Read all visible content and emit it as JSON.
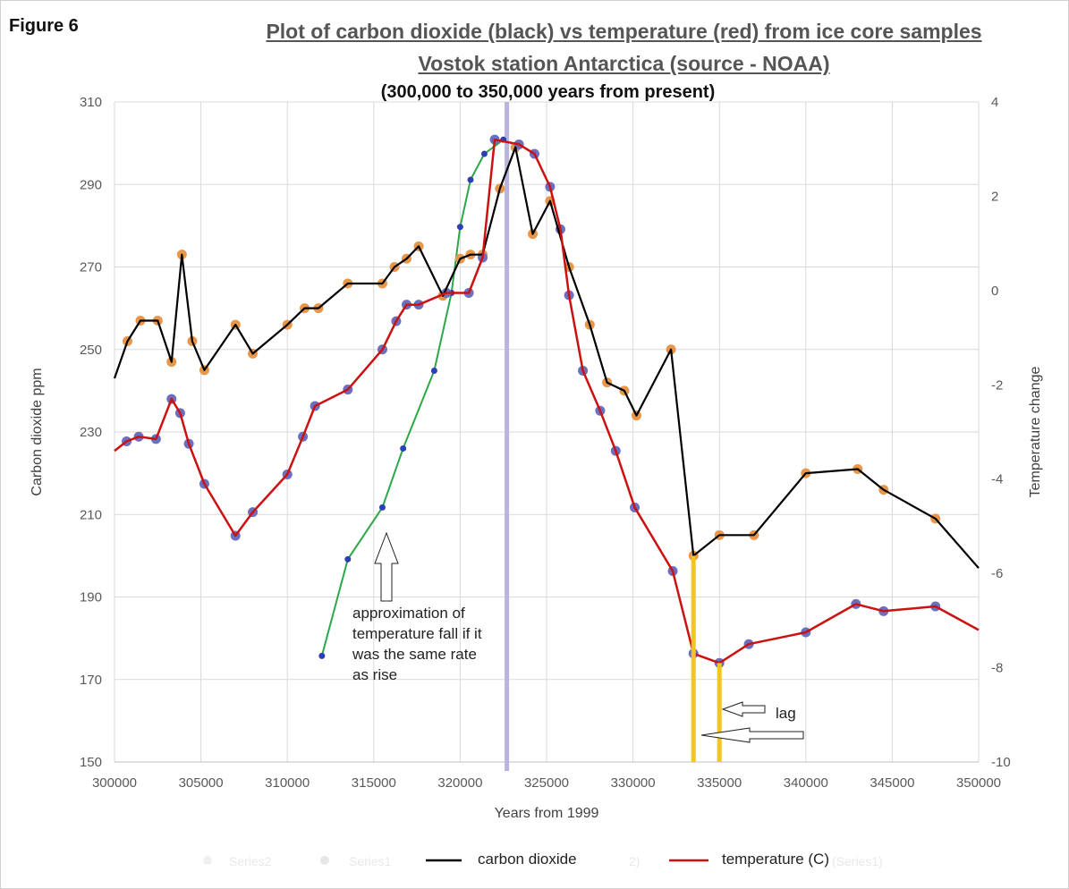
{
  "figure_label": "Figure 6",
  "chart_data": {
    "type": "line",
    "title": "Plot of carbon dioxide (black) vs temperature (red) from ice core samples",
    "subtitle": "Vostok station Antarctica (source  -  NOAA)",
    "subtitle2": "(300,000 to 350,000 years from present)",
    "xlabel": "Years from 1999",
    "ylabel": "Carbon dioxide ppm",
    "y2label": "Temperature change",
    "xlim": [
      300000,
      350000
    ],
    "ylim": [
      150,
      310
    ],
    "y2lim": [
      -10,
      4
    ],
    "x_ticks": [
      "300000",
      "305000",
      "310000",
      "315000",
      "320000",
      "325000",
      "330000",
      "335000",
      "340000",
      "345000",
      "350000"
    ],
    "y_ticks": [
      "150",
      "170",
      "190",
      "210",
      "230",
      "250",
      "270",
      "290",
      "310"
    ],
    "y2_ticks": [
      "-10",
      "-8",
      "-6",
      "-4",
      "-2",
      "0",
      "2",
      "4"
    ],
    "grid": true,
    "colors": {
      "co2": "#000000",
      "temperature": "#cc1111",
      "co2_marker": "#e8964a",
      "temp_marker": "#6b6fbf",
      "approximation": "#2aa84a",
      "approximation_marker": "#2c3fb5",
      "vertical_marker": "#b8b4dc",
      "lag_bars": "#f2c521",
      "grid": "#d9d9d9"
    },
    "series": [
      {
        "name": "carbon dioxide",
        "axis": "left",
        "x": [
          300000,
          300750,
          301500,
          302500,
          303300,
          303900,
          304500,
          305200,
          307000,
          308000,
          310000,
          311000,
          311800,
          313500,
          315500,
          316200,
          316900,
          317600,
          319000,
          320000,
          320600,
          321300,
          322300,
          323200,
          324200,
          325200,
          326300,
          327500,
          328500,
          329500,
          330200,
          332200,
          333500,
          335000,
          337000,
          340000,
          343000,
          344500,
          347500,
          350000
        ],
        "values": [
          243,
          252,
          257,
          257,
          247,
          273,
          252,
          245,
          256,
          249,
          256,
          260,
          260,
          266,
          266,
          270,
          272,
          275,
          263,
          272,
          273,
          273,
          289,
          299,
          278,
          286,
          270,
          256,
          242,
          240,
          234,
          250,
          200,
          205,
          205,
          220,
          221,
          216,
          209,
          197
        ]
      },
      {
        "name": "temperature (C)",
        "axis": "right",
        "x": [
          300000,
          300700,
          301400,
          302400,
          303300,
          303800,
          304300,
          305200,
          307000,
          308000,
          310000,
          310900,
          311600,
          313500,
          315500,
          316300,
          316900,
          317600,
          319200,
          320500,
          321300,
          322000,
          323400,
          324300,
          325200,
          325800,
          326300,
          327100,
          328100,
          329000,
          330100,
          332300,
          333500,
          335000,
          336700,
          340000,
          342900,
          344500,
          347500,
          350000
        ],
        "values": [
          -3.4,
          -3.2,
          -3.1,
          -3.15,
          -2.3,
          -2.6,
          -3.25,
          -4.1,
          -5.2,
          -4.7,
          -3.9,
          -3.1,
          -2.45,
          -2.1,
          -1.25,
          -0.65,
          -0.3,
          -0.3,
          -0.05,
          -0.05,
          0.7,
          3.2,
          3.1,
          2.9,
          2.2,
          1.3,
          -0.1,
          -1.7,
          -2.55,
          -3.4,
          -4.6,
          -5.95,
          -7.7,
          -7.9,
          -7.5,
          -7.25,
          -6.65,
          -6.8,
          -6.7,
          -7.2
        ]
      },
      {
        "name": "approximation",
        "axis": "right",
        "x": [
          312000,
          313500,
          315500,
          316700,
          318500,
          319500,
          320000,
          320600,
          321400,
          322500
        ],
        "values": [
          -7.75,
          -5.7,
          -4.6,
          -3.35,
          -1.7,
          -0.05,
          1.35,
          2.35,
          2.9,
          3.2
        ]
      }
    ],
    "vertical_marker_x": 322700,
    "lag_bars_x": [
      333500,
      335000
    ],
    "annotations": {
      "approximation_text": [
        "approximation of",
        "temperature fall if it",
        "was the same rate",
        "as rise"
      ],
      "lag_text": "lag"
    },
    "legend": {
      "placement": "bottom",
      "co2_label": "carbon dioxide",
      "temp_label": "temperature (C)",
      "faint_labels": [
        "Series2",
        "Series1",
        "2)",
        "(Series1)"
      ]
    }
  }
}
